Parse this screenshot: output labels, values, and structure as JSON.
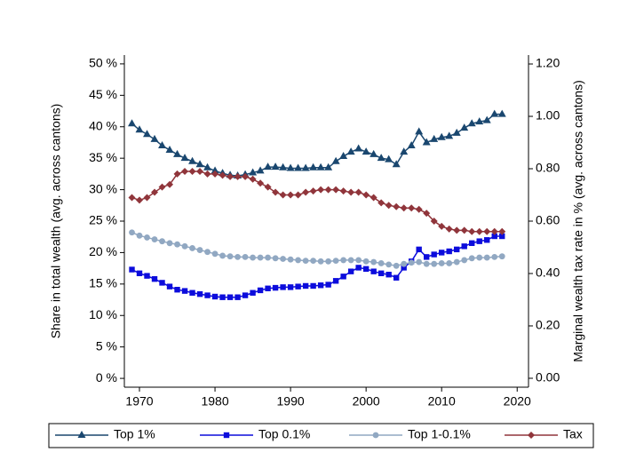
{
  "chart_data": {
    "type": "line",
    "y_label": "Share in total wealth (avg. across cantons)",
    "y2_label": "Marginal wealth tax rate in % (avg. across cantons)",
    "x": [
      1969,
      1970,
      1971,
      1972,
      1973,
      1974,
      1975,
      1976,
      1977,
      1978,
      1979,
      1980,
      1981,
      1982,
      1983,
      1984,
      1985,
      1986,
      1987,
      1988,
      1989,
      1990,
      1991,
      1992,
      1993,
      1994,
      1995,
      1996,
      1997,
      1998,
      1999,
      2000,
      2001,
      2002,
      2003,
      2004,
      2005,
      2006,
      2007,
      2008,
      2009,
      2010,
      2011,
      2012,
      2013,
      2014,
      2015,
      2016,
      2017,
      2018
    ],
    "series": [
      {
        "name": "Top 1%",
        "color": "#1a476f",
        "marker": "triangle",
        "values": [
          40.5,
          39.5,
          38.8,
          38.0,
          37.0,
          36.3,
          35.6,
          35.0,
          34.5,
          34.0,
          33.5,
          33.0,
          32.6,
          32.3,
          32.2,
          32.4,
          32.7,
          33.0,
          33.6,
          33.6,
          33.5,
          33.4,
          33.4,
          33.4,
          33.5,
          33.5,
          33.5,
          34.5,
          35.3,
          36.0,
          36.5,
          36.0,
          35.6,
          35.0,
          34.8,
          34.0,
          36.0,
          37.0,
          39.2,
          37.5,
          38.0,
          38.3,
          38.5,
          39.0,
          39.8,
          40.5,
          40.8,
          41.0,
          42.0,
          42.0
        ]
      },
      {
        "name": "Top 0.1%",
        "color": "#0c0cdc",
        "marker": "square",
        "values": [
          17.3,
          16.7,
          16.3,
          15.8,
          15.2,
          14.6,
          14.1,
          13.9,
          13.6,
          13.4,
          13.2,
          13.0,
          12.9,
          12.9,
          12.9,
          13.2,
          13.6,
          14.0,
          14.3,
          14.4,
          14.5,
          14.5,
          14.6,
          14.7,
          14.7,
          14.8,
          14.9,
          15.5,
          16.2,
          17.0,
          17.6,
          17.4,
          17.0,
          16.7,
          16.5,
          16.0,
          17.6,
          18.6,
          20.5,
          19.3,
          19.7,
          20.0,
          20.2,
          20.5,
          21.0,
          21.5,
          21.8,
          22.0,
          22.6,
          22.6
        ]
      },
      {
        "name": "Top 1-0.1%",
        "color": "#91a8c2",
        "marker": "circle",
        "values": [
          23.2,
          22.7,
          22.4,
          22.1,
          21.8,
          21.5,
          21.3,
          21.0,
          20.7,
          20.4,
          20.1,
          19.8,
          19.5,
          19.4,
          19.3,
          19.3,
          19.2,
          19.2,
          19.2,
          19.1,
          19.0,
          18.9,
          18.8,
          18.7,
          18.7,
          18.6,
          18.6,
          18.7,
          18.8,
          18.8,
          18.8,
          18.6,
          18.5,
          18.3,
          18.1,
          17.9,
          18.2,
          18.4,
          18.5,
          18.2,
          18.2,
          18.3,
          18.3,
          18.5,
          18.8,
          19.1,
          19.2,
          19.2,
          19.3,
          19.4
        ]
      },
      {
        "name": "Tax",
        "color": "#90353b",
        "marker": "diamond",
        "axis": "y2",
        "values": [
          0.69,
          0.68,
          0.69,
          0.71,
          0.73,
          0.74,
          0.78,
          0.79,
          0.79,
          0.79,
          0.78,
          0.78,
          0.775,
          0.77,
          0.77,
          0.77,
          0.76,
          0.745,
          0.73,
          0.71,
          0.7,
          0.7,
          0.7,
          0.71,
          0.715,
          0.72,
          0.72,
          0.72,
          0.715,
          0.71,
          0.71,
          0.7,
          0.69,
          0.67,
          0.66,
          0.655,
          0.65,
          0.65,
          0.645,
          0.63,
          0.6,
          0.58,
          0.57,
          0.565,
          0.565,
          0.56,
          0.56,
          0.56,
          0.56,
          0.56
        ]
      }
    ],
    "xlim": [
      1968,
      2021.5
    ],
    "xticks": [
      1970,
      1980,
      1990,
      2000,
      2010,
      2020
    ],
    "ylim": [
      -1.4,
      51.4
    ],
    "yticks": [
      {
        "value": 0,
        "label": "0 %"
      },
      {
        "value": 5,
        "label": "5 %"
      },
      {
        "value": 10,
        "label": "10 %"
      },
      {
        "value": 15,
        "label": "15 %"
      },
      {
        "value": 20,
        "label": "20 %"
      },
      {
        "value": 25,
        "label": "25 %"
      },
      {
        "value": 30,
        "label": "30 %"
      },
      {
        "value": 35,
        "label": "35 %"
      },
      {
        "value": 40,
        "label": "40 %"
      },
      {
        "value": 45,
        "label": "45 %"
      },
      {
        "value": 50,
        "label": "50 %"
      }
    ],
    "y2lim": [
      -0.034,
      1.234
    ],
    "y2ticks": [
      {
        "value": 0,
        "label": "0.00"
      },
      {
        "value": 0.2,
        "label": "0.20"
      },
      {
        "value": 0.4,
        "label": "0.40"
      },
      {
        "value": 0.6,
        "label": "0.60"
      },
      {
        "value": 0.8,
        "label": "0.80"
      },
      {
        "value": 1.0,
        "label": "1.00"
      },
      {
        "value": 1.2,
        "label": "1.20"
      }
    ],
    "legend": "bottom"
  }
}
